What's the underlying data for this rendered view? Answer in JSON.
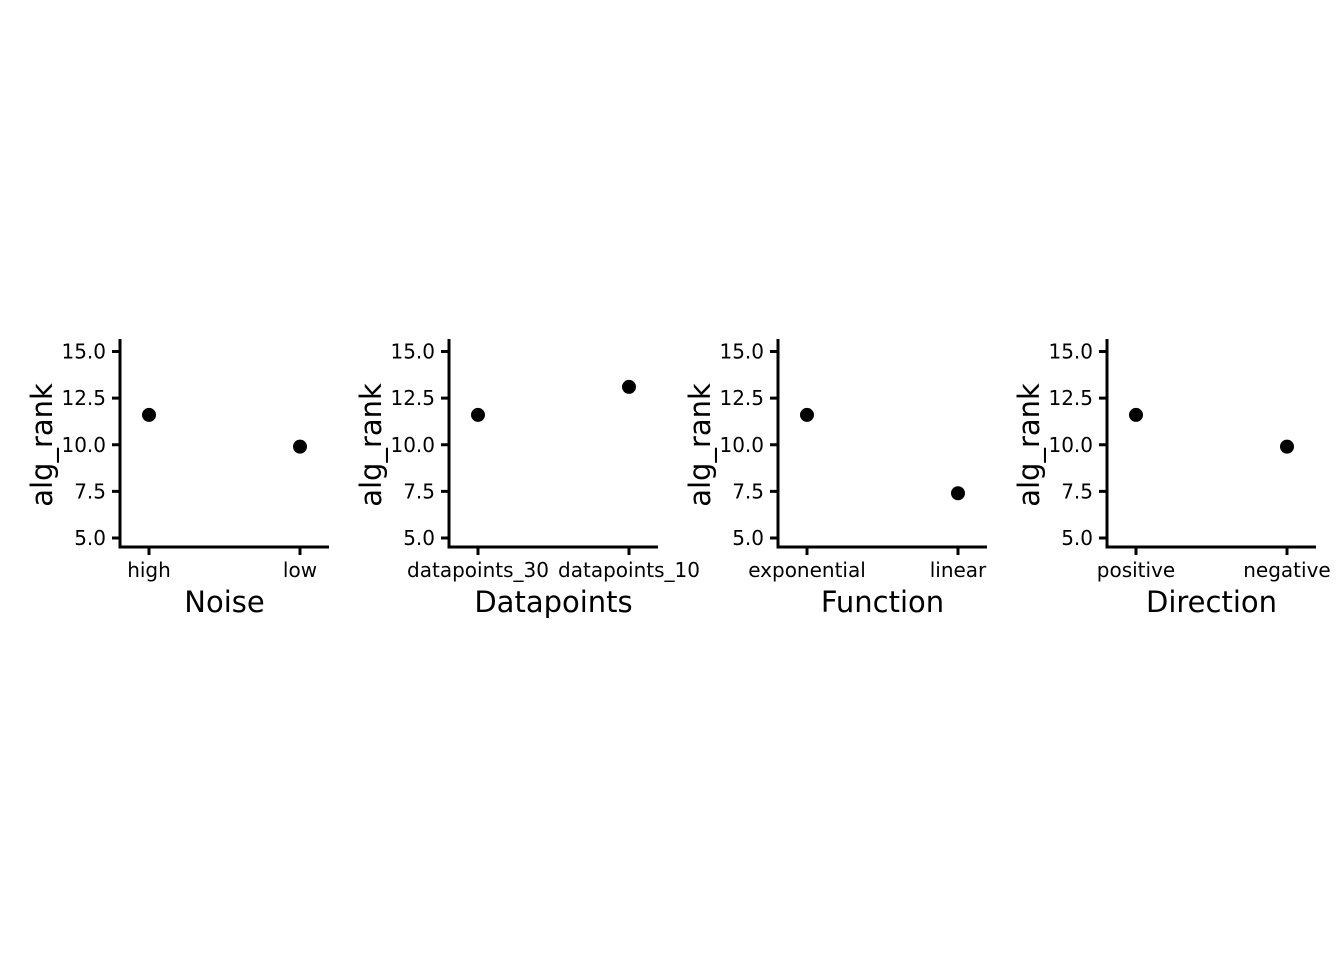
{
  "colors": {
    "foreground": "#000000",
    "background": "#ffffff"
  },
  "chart_data": [
    {
      "type": "scatter",
      "title": "",
      "xlabel": "Noise",
      "ylabel": "alg_rank",
      "categories": [
        "high",
        "low"
      ],
      "values": [
        11.6,
        9.9
      ],
      "ylim": [
        5,
        15
      ],
      "ytick_labels": [
        "15.0",
        "12.5",
        "10.0",
        "7.5",
        "5.0"
      ],
      "grid": false,
      "legend": false
    },
    {
      "type": "scatter",
      "title": "",
      "xlabel": "Datapoints",
      "ylabel": "alg_rank",
      "categories": [
        "datapoints_30",
        "datapoints_10"
      ],
      "values": [
        11.6,
        13.1
      ],
      "ylim": [
        5,
        15
      ],
      "ytick_labels": [
        "15.0",
        "12.5",
        "10.0",
        "7.5",
        "5.0"
      ],
      "grid": false,
      "legend": false
    },
    {
      "type": "scatter",
      "title": "",
      "xlabel": "Function",
      "ylabel": "alg_rank",
      "categories": [
        "exponential",
        "linear"
      ],
      "values": [
        11.6,
        7.4
      ],
      "ylim": [
        5,
        15
      ],
      "ytick_labels": [
        "15.0",
        "12.5",
        "10.0",
        "7.5",
        "5.0"
      ],
      "grid": false,
      "legend": false
    },
    {
      "type": "scatter",
      "title": "",
      "xlabel": "Direction",
      "ylabel": "alg_rank",
      "categories": [
        "positive",
        "negative"
      ],
      "values": [
        11.6,
        9.9
      ],
      "ylim": [
        5,
        15
      ],
      "ytick_labels": [
        "15.0",
        "12.5",
        "10.0",
        "7.5",
        "5.0"
      ],
      "grid": false,
      "legend": false
    }
  ]
}
